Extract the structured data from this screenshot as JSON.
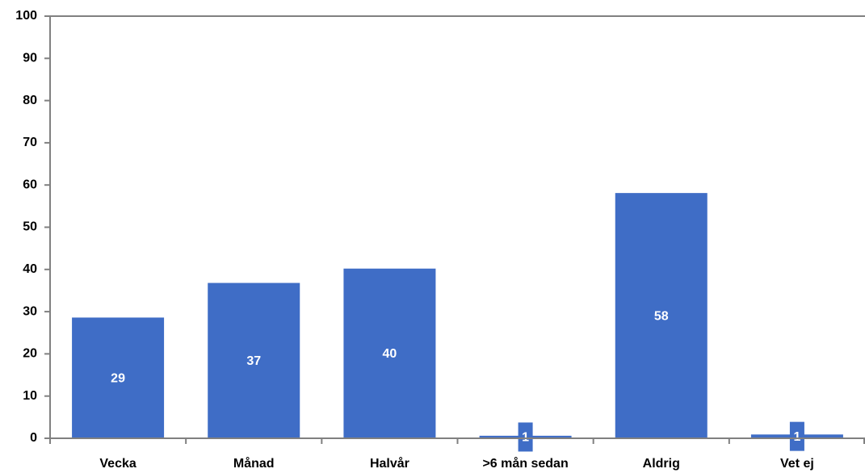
{
  "chart_data": {
    "type": "bar",
    "categories": [
      "Vecka",
      "Månad",
      "Halvår",
      ">6 mån sedan",
      "Aldrig",
      "Vet ej"
    ],
    "values": [
      28.6,
      36.8,
      40.2,
      0.6,
      58.1,
      0.9
    ],
    "value_labels": [
      "29",
      "37",
      "40",
      "1",
      "58",
      "1"
    ],
    "color": "#3f6dc6",
    "ylim": [
      0,
      100
    ],
    "yticks": [
      0,
      10,
      20,
      30,
      40,
      50,
      60,
      70,
      80,
      90,
      100
    ],
    "grid": false
  }
}
